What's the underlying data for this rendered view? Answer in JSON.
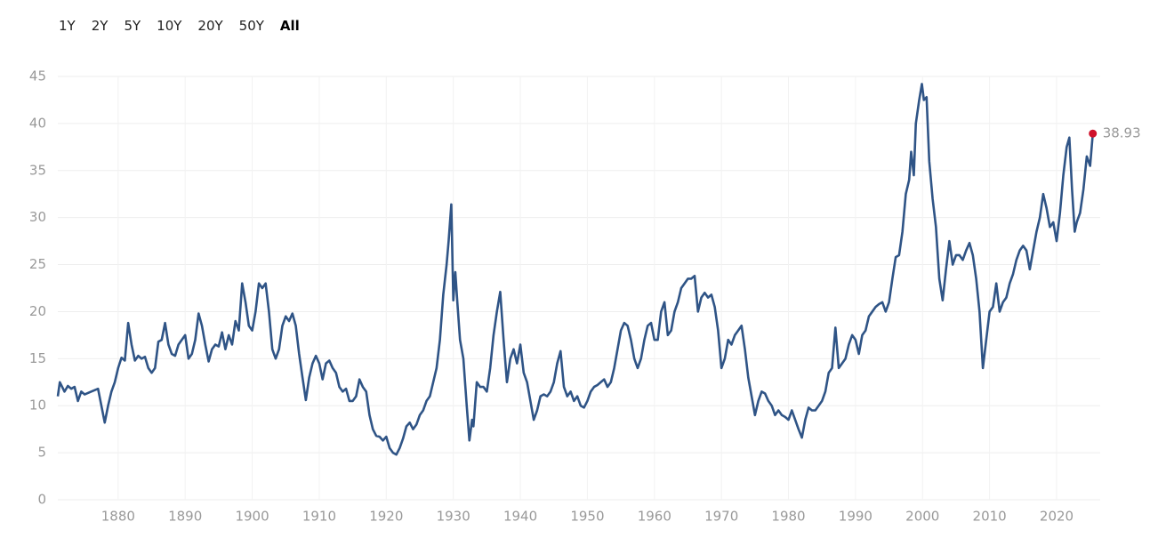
{
  "range_buttons": [
    "1Y",
    "2Y",
    "5Y",
    "10Y",
    "20Y",
    "50Y",
    "All"
  ],
  "range_active_index": 6,
  "chart_data": {
    "type": "line",
    "color": "#2f5486",
    "end_marker_color": "#d0112b",
    "grid": true,
    "xlim": [
      1871,
      2026.5
    ],
    "xticks": [
      1880,
      1890,
      1900,
      1910,
      1920,
      1930,
      1940,
      1950,
      1960,
      1970,
      1980,
      1990,
      2000,
      2010,
      2020
    ],
    "ylim": [
      0,
      45
    ],
    "yticks": [
      0,
      5,
      10,
      15,
      20,
      25,
      30,
      35,
      40,
      45
    ],
    "x": [
      1871,
      1871.3,
      1872,
      1872.5,
      1873,
      1873.5,
      1874,
      1874.5,
      1875,
      1876,
      1877,
      1877.5,
      1878,
      1878.5,
      1879,
      1879.5,
      1880,
      1880.5,
      1881,
      1881.5,
      1882,
      1882.5,
      1883,
      1883.5,
      1884,
      1884.5,
      1885,
      1885.5,
      1886,
      1886.5,
      1887,
      1887.5,
      1888,
      1888.5,
      1889,
      1889.5,
      1890,
      1890.5,
      1891,
      1891.5,
      1892,
      1892.5,
      1893,
      1893.5,
      1894,
      1894.5,
      1895,
      1895.5,
      1896,
      1896.5,
      1897,
      1897.5,
      1898,
      1898.5,
      1899,
      1899.5,
      1900,
      1900.5,
      1901,
      1901.5,
      1902,
      1902.5,
      1903,
      1903.5,
      1904,
      1904.5,
      1905,
      1905.5,
      1906,
      1906.5,
      1907,
      1907.5,
      1908,
      1908.5,
      1909,
      1909.5,
      1910,
      1910.5,
      1911,
      1911.5,
      1912,
      1912.5,
      1913,
      1913.5,
      1914,
      1914.5,
      1915,
      1915.5,
      1916,
      1916.5,
      1917,
      1917.5,
      1918,
      1918.5,
      1919,
      1919.5,
      1920,
      1920.5,
      1921,
      1921.5,
      1922,
      1922.5,
      1923,
      1923.5,
      1924,
      1924.5,
      1925,
      1925.5,
      1926,
      1926.5,
      1927,
      1927.5,
      1928,
      1928.5,
      1929,
      1929.3,
      1929.7,
      1930,
      1930.3,
      1930.6,
      1931,
      1931.5,
      1932,
      1932.4,
      1932.8,
      1933,
      1933.5,
      1934,
      1934.5,
      1935,
      1935.5,
      1936,
      1936.5,
      1937,
      1937.5,
      1938,
      1938.5,
      1939,
      1939.5,
      1940,
      1940.5,
      1941,
      1941.5,
      1942,
      1942.5,
      1943,
      1943.5,
      1944,
      1944.5,
      1945,
      1945.5,
      1946,
      1946.5,
      1947,
      1947.5,
      1948,
      1948.5,
      1949,
      1949.5,
      1950,
      1950.5,
      1951,
      1951.5,
      1952,
      1952.5,
      1953,
      1953.5,
      1954,
      1954.5,
      1955,
      1955.5,
      1956,
      1956.5,
      1957,
      1957.5,
      1958,
      1958.5,
      1959,
      1959.5,
      1960,
      1960.5,
      1961,
      1961.5,
      1962,
      1962.5,
      1963,
      1963.5,
      1964,
      1964.5,
      1965,
      1965.5,
      1966,
      1966.5,
      1967,
      1967.5,
      1968,
      1968.5,
      1969,
      1969.5,
      1970,
      1970.5,
      1971,
      1971.5,
      1972,
      1972.5,
      1973,
      1973.5,
      1974,
      1974.5,
      1975,
      1975.5,
      1976,
      1976.5,
      1977,
      1977.5,
      1978,
      1978.5,
      1979,
      1979.5,
      1980,
      1980.5,
      1981,
      1981.5,
      1982,
      1982.5,
      1983,
      1983.5,
      1984,
      1984.5,
      1985,
      1985.5,
      1986,
      1986.5,
      1987,
      1987.5,
      1988,
      1988.5,
      1989,
      1989.5,
      1990,
      1990.5,
      1991,
      1991.5,
      1992,
      1992.5,
      1993,
      1993.5,
      1994,
      1994.5,
      1995,
      1995.5,
      1996,
      1996.5,
      1997,
      1997.5,
      1998,
      1998.3,
      1998.7,
      1999,
      1999.5,
      1999.9,
      2000.2,
      2000.6,
      2001,
      2001.5,
      2002,
      2002.5,
      2003,
      2003.5,
      2004,
      2004.5,
      2005,
      2005.5,
      2006,
      2006.5,
      2007,
      2007.5,
      2008,
      2008.5,
      2009,
      2009.5,
      2010,
      2010.5,
      2011,
      2011.5,
      2012,
      2012.5,
      2013,
      2013.5,
      2014,
      2014.5,
      2015,
      2015.5,
      2016,
      2016.5,
      2017,
      2017.5,
      2018,
      2018.5,
      2019,
      2019.5,
      2020,
      2020.5,
      2021,
      2021.5,
      2021.9,
      2022.3,
      2022.7,
      2023,
      2023.5,
      2024,
      2024.5,
      2025,
      2025.4
    ],
    "values": [
      11.0,
      12.5,
      11.5,
      12.1,
      11.8,
      12.0,
      10.5,
      11.5,
      11.2,
      11.5,
      11.8,
      10.0,
      8.2,
      10.0,
      11.5,
      12.5,
      14.0,
      15.1,
      14.8,
      18.8,
      16.5,
      14.8,
      15.3,
      15.0,
      15.2,
      14.0,
      13.5,
      14.0,
      16.8,
      17.0,
      18.8,
      16.5,
      15.5,
      15.3,
      16.5,
      17.0,
      17.5,
      15.0,
      15.5,
      17.0,
      19.8,
      18.5,
      16.5,
      14.7,
      16.0,
      16.5,
      16.3,
      17.8,
      16.0,
      17.5,
      16.5,
      19.0,
      18.0,
      23.0,
      21.0,
      18.5,
      18.0,
      20.0,
      23.0,
      22.5,
      23.0,
      20.0,
      16.0,
      15.0,
      16.0,
      18.5,
      19.5,
      19.0,
      19.8,
      18.5,
      15.5,
      13.0,
      10.6,
      13.0,
      14.5,
      15.3,
      14.5,
      12.8,
      14.5,
      14.8,
      14.0,
      13.5,
      12.0,
      11.5,
      11.8,
      10.5,
      10.5,
      11.0,
      12.8,
      12.0,
      11.5,
      9.0,
      7.5,
      6.8,
      6.7,
      6.3,
      6.7,
      5.5,
      5.0,
      4.8,
      5.5,
      6.5,
      7.8,
      8.2,
      7.5,
      8.0,
      9.0,
      9.5,
      10.5,
      11.0,
      12.5,
      14.0,
      17.0,
      21.8,
      25.0,
      27.5,
      31.4,
      21.2,
      24.2,
      21.0,
      17.0,
      15.0,
      10.0,
      6.3,
      8.5,
      7.8,
      12.5,
      12.0,
      12.0,
      11.5,
      14.0,
      17.5,
      20.0,
      22.1,
      17.0,
      12.5,
      15.0,
      16.0,
      14.5,
      16.5,
      13.5,
      12.5,
      10.5,
      8.5,
      9.5,
      11.0,
      11.2,
      11.0,
      11.5,
      12.5,
      14.5,
      15.8,
      12.0,
      11.0,
      11.5,
      10.5,
      11.0,
      10.0,
      9.8,
      10.5,
      11.5,
      12.0,
      12.2,
      12.5,
      12.8,
      12.0,
      12.5,
      14.0,
      16.0,
      18.0,
      18.8,
      18.5,
      17.0,
      15.0,
      14.0,
      15.0,
      17.0,
      18.5,
      18.8,
      17.0,
      17.0,
      20.0,
      21.0,
      17.5,
      18.0,
      20.0,
      21.0,
      22.5,
      23.0,
      23.5,
      23.5,
      23.8,
      20.0,
      21.5,
      22.0,
      21.5,
      21.8,
      20.5,
      18.0,
      14.0,
      15.0,
      17.0,
      16.5,
      17.5,
      18.0,
      18.5,
      16.0,
      13.0,
      11.0,
      9.0,
      10.5,
      11.5,
      11.3,
      10.5,
      10.0,
      9.0,
      9.5,
      9.0,
      8.8,
      8.5,
      9.5,
      8.5,
      7.5,
      6.6,
      8.5,
      9.8,
      9.5,
      9.5,
      10.0,
      10.5,
      11.5,
      13.5,
      14.0,
      18.3,
      14.0,
      14.5,
      15.0,
      16.5,
      17.5,
      17.0,
      15.5,
      17.5,
      18.0,
      19.5,
      20.0,
      20.5,
      20.8,
      21.0,
      20.0,
      21.0,
      23.5,
      25.8,
      26.0,
      28.5,
      32.5,
      34.0,
      37.0,
      34.5,
      40.0,
      42.5,
      44.2,
      42.5,
      42.8,
      36.0,
      32.0,
      29.0,
      23.5,
      21.2,
      24.5,
      27.5,
      25.0,
      26.0,
      26.0,
      25.5,
      26.5,
      27.3,
      26.0,
      23.5,
      20.0,
      14.0,
      17.0,
      20.0,
      20.5,
      23.0,
      20.0,
      21.0,
      21.5,
      23.0,
      24.0,
      25.5,
      26.5,
      27.0,
      26.5,
      24.5,
      26.5,
      28.5,
      30.0,
      32.5,
      31.0,
      29.0,
      29.5,
      27.5,
      30.5,
      34.5,
      37.5,
      38.5,
      33.0,
      28.5,
      29.5,
      30.5,
      33.0,
      36.5,
      35.5,
      38.93
    ]
  }
}
